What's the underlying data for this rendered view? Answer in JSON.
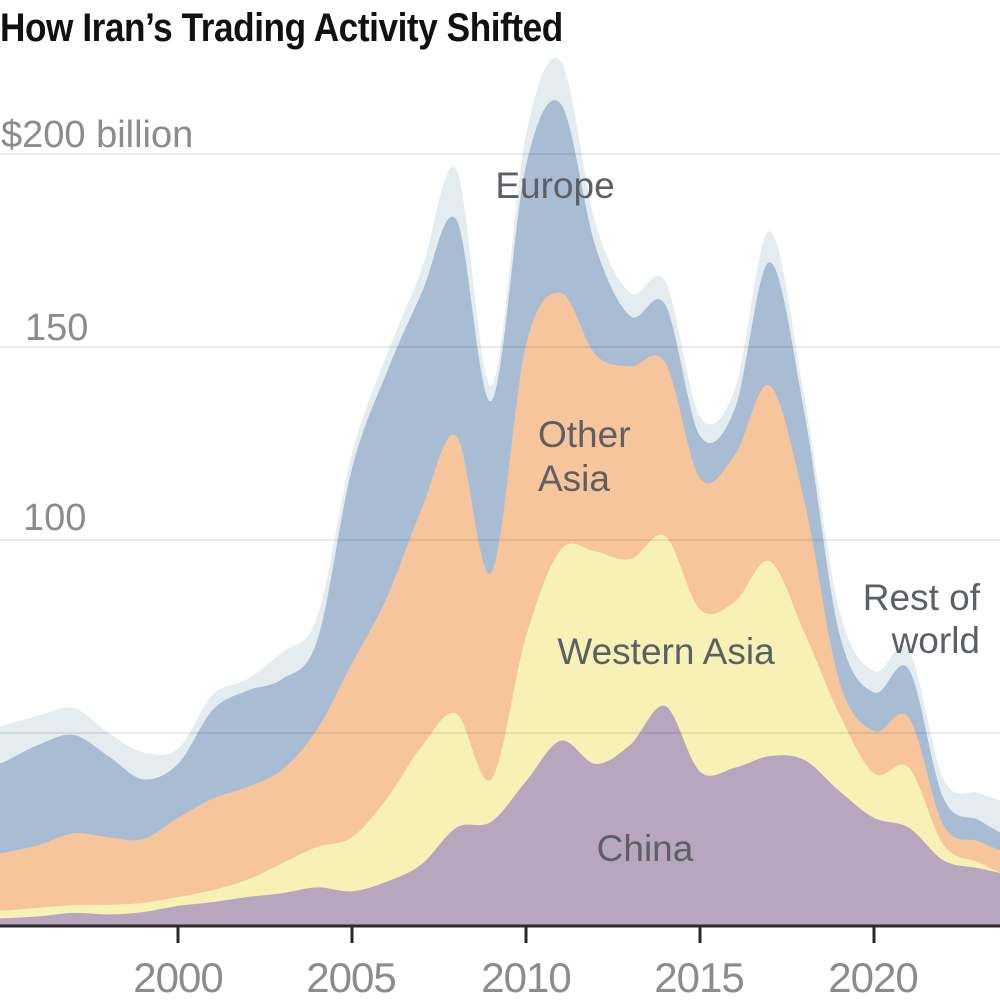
{
  "title": "How Iran’s Trading Activity Shifted",
  "chart_data": {
    "type": "area",
    "stacked": true,
    "unit": "$ billions",
    "title": "How Iran’s Trading Activity Shifted",
    "x": [
      1995,
      1996,
      1997,
      1998,
      1999,
      2000,
      2001,
      2002,
      2003,
      2004,
      2005,
      2006,
      2007,
      2008,
      2009,
      2010,
      2011,
      2012,
      2013,
      2014,
      2015,
      2016,
      2017,
      2018,
      2019,
      2020,
      2021,
      2022,
      2023
    ],
    "x_axis": {
      "tick_labels": [
        "2000",
        "2005",
        "2010",
        "2015",
        "2020"
      ],
      "tick_years": [
        2000,
        2005,
        2010,
        2015,
        2020
      ]
    },
    "y_axis": {
      "tick_labels": [
        "$200 billion",
        "150",
        "100"
      ],
      "gridline_values": [
        200,
        150,
        100,
        50
      ],
      "ylim": [
        0,
        230
      ]
    },
    "legend_position": "inline-labels",
    "grid": true,
    "series": [
      {
        "name": "China",
        "label": "China",
        "color": "#b8a6bf",
        "values": [
          2,
          2.5,
          3.4,
          3,
          3.6,
          5.2,
          6.2,
          7.5,
          8.5,
          10,
          9,
          11.5,
          16,
          25.5,
          27,
          37.5,
          48,
          42,
          47,
          57,
          40,
          41,
          44,
          43,
          35,
          28,
          25.5,
          17,
          15
        ]
      },
      {
        "name": "Western Asia",
        "label": "Western Asia",
        "color": "#f8f1b6",
        "values": [
          2,
          2.2,
          2,
          2.5,
          2.4,
          2.3,
          3.1,
          4.5,
          7.8,
          10.5,
          14,
          21.5,
          30.5,
          29.5,
          11,
          37.5,
          49.5,
          55,
          48,
          44,
          42,
          43,
          50.5,
          33,
          20,
          11.5,
          15.5,
          4,
          1.5
        ]
      },
      {
        "name": "Other Asia",
        "label_lines": [
          "Other",
          "Asia"
        ],
        "color": "#f6c59b",
        "values": [
          15,
          16.3,
          18.6,
          17.5,
          16.5,
          20.5,
          23.7,
          24,
          24.2,
          30.5,
          45,
          52,
          61.5,
          72,
          53.5,
          75.5,
          66.5,
          51,
          50,
          45,
          34,
          38,
          45.5,
          34,
          8.5,
          11,
          13,
          5,
          5.5
        ]
      },
      {
        "name": "Europe",
        "label": "Europe",
        "color": "#a8bdd4",
        "values": [
          23.5,
          26,
          25.5,
          21,
          15.5,
          14,
          23,
          25,
          23.5,
          23,
          50.5,
          58.5,
          56,
          56,
          44.5,
          46.5,
          49,
          28,
          13,
          15,
          11,
          12,
          32,
          23,
          12.5,
          10,
          12.5,
          7,
          5.5
        ]
      },
      {
        "name": "Rest of world",
        "label_lines": [
          "Rest of",
          "world"
        ],
        "color": "#e5ecef",
        "values": [
          9.5,
          7.5,
          7,
          6,
          7,
          4,
          4,
          3,
          7,
          6,
          4,
          4.5,
          6,
          13,
          4,
          8,
          11,
          6,
          6,
          6,
          5,
          5,
          8,
          4,
          6,
          5.5,
          5,
          5,
          7
        ]
      }
    ],
    "style": {
      "gridline_color": "rgba(0,0,0,0.1)",
      "axis_color": "#2a2a2a",
      "tick_text_color": "#8c8c8c",
      "label_text_color": "#5c6065"
    }
  }
}
